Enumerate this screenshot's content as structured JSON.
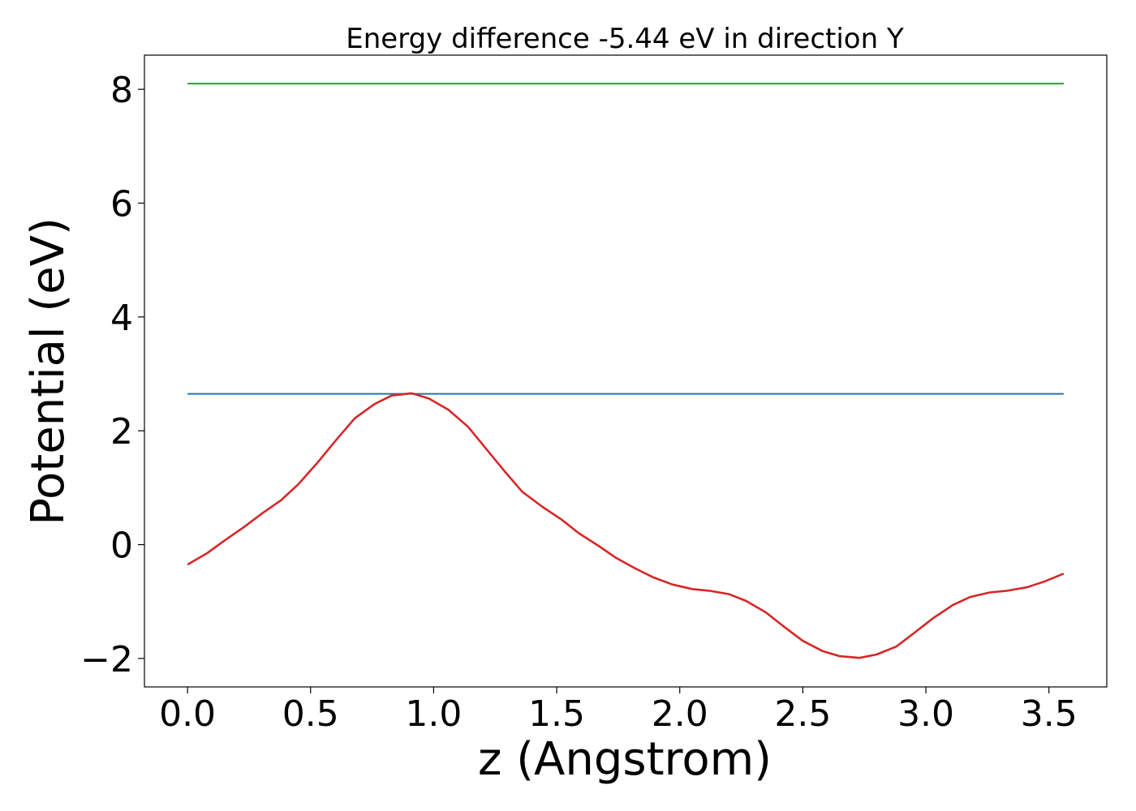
{
  "chart_data": {
    "type": "line",
    "title": "Energy difference -5.44 eV in direction Y",
    "xlabel": "z (Angstrom)",
    "ylabel": "Potential (eV)",
    "xlim": [
      -0.175,
      3.735
    ],
    "ylim": [
      -2.5,
      8.6
    ],
    "xticks": [
      0.0,
      0.5,
      1.0,
      1.5,
      2.0,
      2.5,
      3.0,
      3.5
    ],
    "xtick_labels": [
      "0.0",
      "0.5",
      "1.0",
      "1.5",
      "2.0",
      "2.5",
      "3.0",
      "3.5"
    ],
    "yticks": [
      -2,
      0,
      2,
      4,
      6,
      8
    ],
    "ytick_labels": [
      "−2",
      "0",
      "2",
      "4",
      "6",
      "8"
    ],
    "grid": false,
    "series": [
      {
        "color": "#2ca02c",
        "x": [
          0.0,
          3.56
        ],
        "y": [
          8.1,
          8.1
        ]
      },
      {
        "color": "#1f77b4",
        "x": [
          0.0,
          3.56
        ],
        "y": [
          2.65,
          2.65
        ]
      },
      {
        "color": "#d62728",
        "x": [
          0.0,
          0.08,
          0.15,
          0.23,
          0.3,
          0.38,
          0.45,
          0.53,
          0.61,
          0.68,
          0.76,
          0.83,
          0.91,
          0.98,
          1.06,
          1.14,
          1.21,
          1.29,
          1.36,
          1.44,
          1.52,
          1.59,
          1.67,
          1.74,
          1.82,
          1.89,
          1.97,
          2.05,
          2.12,
          2.2,
          2.27,
          2.35,
          2.42,
          2.5,
          2.58,
          2.65,
          2.73,
          2.8,
          2.88,
          2.95,
          3.03,
          3.11,
          3.18,
          3.26,
          3.33,
          3.41,
          3.48,
          3.56
        ],
        "y": [
          -0.35,
          -0.15,
          0.07,
          0.31,
          0.54,
          0.78,
          1.06,
          1.45,
          1.87,
          2.22,
          2.47,
          2.62,
          2.66,
          2.57,
          2.37,
          2.07,
          1.7,
          1.28,
          0.93,
          0.67,
          0.44,
          0.2,
          -0.02,
          -0.23,
          -0.42,
          -0.57,
          -0.7,
          -0.78,
          -0.81,
          -0.87,
          -0.99,
          -1.19,
          -1.43,
          -1.69,
          -1.87,
          -1.96,
          -1.99,
          -1.93,
          -1.79,
          -1.56,
          -1.29,
          -1.06,
          -0.92,
          -0.84,
          -0.81,
          -0.75,
          -0.65,
          -0.51
        ]
      }
    ]
  }
}
